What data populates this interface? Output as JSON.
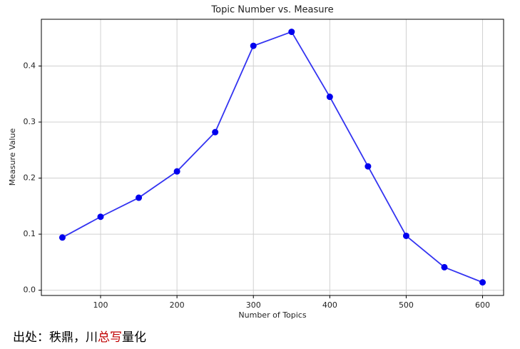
{
  "chart_data": {
    "type": "line",
    "title": "Topic Number vs. Measure",
    "xlabel": "Number of Topics",
    "ylabel": "Measure Value",
    "x": [
      50,
      100,
      150,
      200,
      250,
      300,
      350,
      400,
      450,
      500,
      550,
      600
    ],
    "values": [
      0.094,
      0.131,
      0.165,
      0.212,
      0.282,
      0.436,
      0.461,
      0.345,
      0.221,
      0.097,
      0.041,
      0.014
    ],
    "color": "#0000ee",
    "xlim": [
      22.5,
      627.5
    ],
    "xticks": [
      100,
      200,
      300,
      400,
      500,
      600
    ],
    "ylim": [
      -0.0094,
      0.4834
    ],
    "yticks": [
      {
        "value": 0,
        "label": "0.0"
      },
      0.1,
      0.2,
      0.3,
      0.4
    ],
    "grid": true
  },
  "caption": {
    "parts": [
      {
        "text": "出处：秩鼎，川",
        "color": "#000000"
      },
      {
        "text": "总写",
        "color": "#c00000"
      },
      {
        "text": "量化",
        "color": "#000000"
      }
    ]
  }
}
